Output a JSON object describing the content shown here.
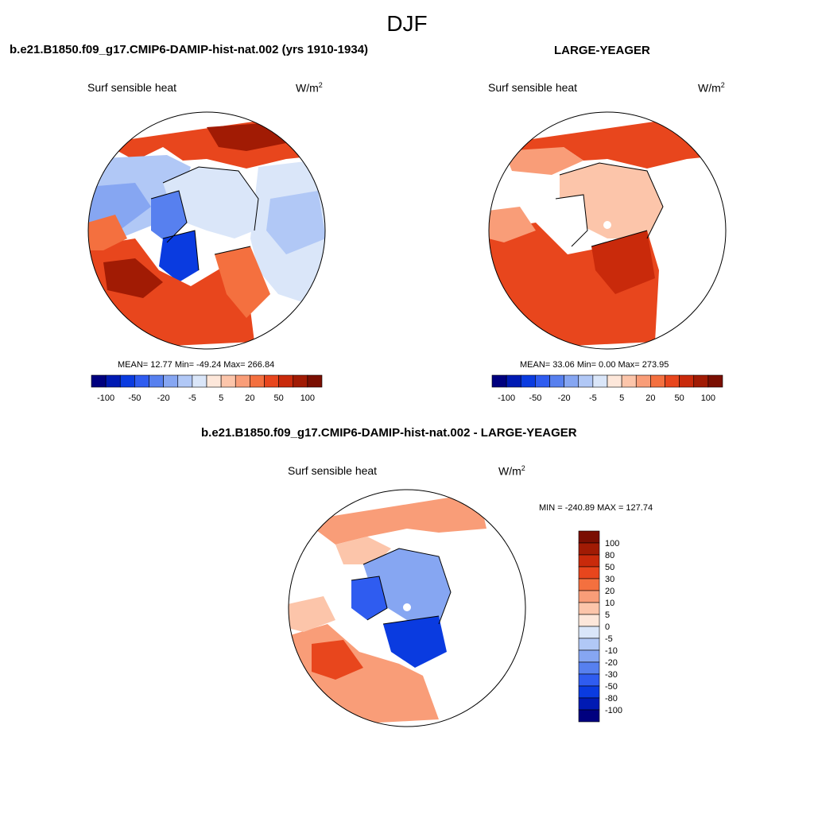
{
  "figure": {
    "season": "DJF",
    "panels": [
      {
        "case_title": "b.e21.B1850.f09_g17.CMIP6-DAMIP-hist-nat.002 (yrs 1910-1934)",
        "variable": "Surf sensible heat",
        "units_base": "W/m",
        "units_exp": "2",
        "stats": "MEAN=  12.77  Min= -49.24  Max= 266.84",
        "colorbar_labels": [
          "-100",
          "-50",
          "-20",
          "-5",
          "5",
          "20",
          "50",
          "100"
        ]
      },
      {
        "case_title": "LARGE-YEAGER",
        "variable": "Surf sensible heat",
        "units_base": "W/m",
        "units_exp": "2",
        "stats": "MEAN=  33.06  Min=   0.00  Max= 273.95",
        "colorbar_labels": [
          "-100",
          "-50",
          "-20",
          "-5",
          "5",
          "20",
          "50",
          "100"
        ]
      },
      {
        "case_title": "b.e21.B1850.f09_g17.CMIP6-DAMIP-hist-nat.002 - LARGE-YEAGER",
        "variable": "Surf sensible heat",
        "units_base": "W/m",
        "units_exp": "2",
        "minmax": "MIN = -240.89 MAX = 127.74",
        "colorbar_labels": [
          "100",
          "80",
          "50",
          "30",
          "20",
          "10",
          "5",
          "0",
          "-5",
          "-10",
          "-20",
          "-30",
          "-50",
          "-80",
          "-100"
        ]
      }
    ]
  },
  "chart_data": [
    {
      "type": "heatmap",
      "projection": "north-polar-stereographic",
      "title": "b.e21.B1850.f09_g17.CMIP6-DAMIP-hist-nat.002 (yrs 1910-1934)",
      "variable": "Surf sensible heat",
      "units": "W/m2",
      "mean": 12.77,
      "min": -49.24,
      "max": 266.84,
      "contour_levels": [
        -100,
        -80,
        -50,
        -30,
        -20,
        -10,
        -5,
        0,
        5,
        10,
        20,
        30,
        50,
        80,
        100
      ],
      "colorbar": "horizontal-bottom"
    },
    {
      "type": "heatmap",
      "projection": "north-polar-stereographic",
      "title": "LARGE-YEAGER",
      "variable": "Surf sensible heat",
      "units": "W/m2",
      "mean": 33.06,
      "min": 0.0,
      "max": 273.95,
      "contour_levels": [
        -100,
        -80,
        -50,
        -30,
        -20,
        -10,
        -5,
        0,
        5,
        10,
        20,
        30,
        50,
        80,
        100
      ],
      "colorbar": "horizontal-bottom"
    },
    {
      "type": "heatmap",
      "projection": "north-polar-stereographic",
      "title": "b.e21.B1850.f09_g17.CMIP6-DAMIP-hist-nat.002 - LARGE-YEAGER",
      "variable": "Surf sensible heat",
      "units": "W/m2",
      "min": -240.89,
      "max": 127.74,
      "contour_levels": [
        -100,
        -80,
        -50,
        -30,
        -20,
        -10,
        -5,
        0,
        5,
        10,
        20,
        30,
        50,
        80,
        100
      ],
      "colorbar": "vertical-right"
    }
  ],
  "palette": {
    "colors": [
      "#00007f",
      "#001ab3",
      "#0a3be0",
      "#2f5cf0",
      "#5780ef",
      "#86a6f2",
      "#b1c8f6",
      "#dae6f9",
      "#fde7da",
      "#fcc5aa",
      "#f99d78",
      "#f4703f",
      "#e8461d",
      "#c92a0b",
      "#a11b04",
      "#7a0f02"
    ],
    "ocean_fill": "#ffffff",
    "coast_color": "#000000"
  }
}
